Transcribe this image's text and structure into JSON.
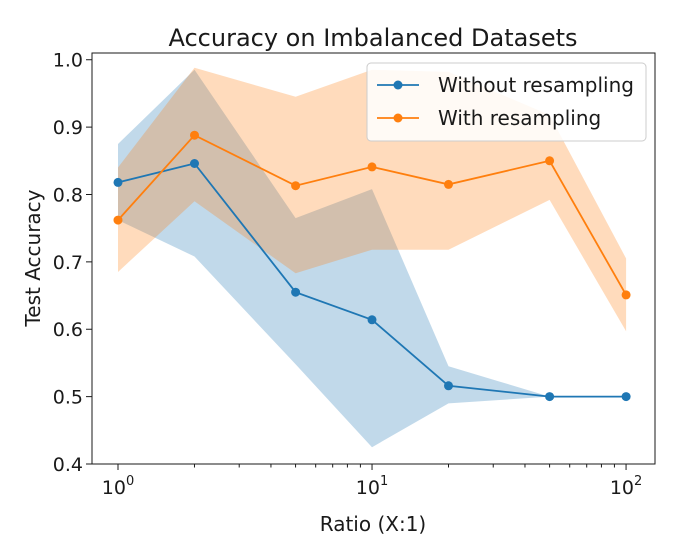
{
  "chart_data": {
    "type": "line",
    "title": "Accuracy on Imbalanced Datasets",
    "xlabel": "Ratio (X:1)",
    "ylabel": "Test Accuracy",
    "xscale": "log",
    "xlim": [
      0.79,
      130
    ],
    "ylim": [
      0.4,
      1.01
    ],
    "x": [
      1,
      2,
      5,
      10,
      20,
      50,
      100
    ],
    "xticks": [
      {
        "value": 1,
        "base": "10",
        "exp": "0"
      },
      {
        "value": 10,
        "base": "10",
        "exp": "1"
      },
      {
        "value": 100,
        "base": "10",
        "exp": "2"
      }
    ],
    "yticks": [
      {
        "value": 0.4,
        "label": "0.4"
      },
      {
        "value": 0.5,
        "label": "0.5"
      },
      {
        "value": 0.6,
        "label": "0.6"
      },
      {
        "value": 0.7,
        "label": "0.7"
      },
      {
        "value": 0.8,
        "label": "0.8"
      },
      {
        "value": 0.9,
        "label": "0.9"
      },
      {
        "value": 1.0,
        "label": "1.0"
      }
    ],
    "legend_position": "top-right",
    "series": [
      {
        "name": "Without resampling",
        "color": "#1f77b4",
        "band_color": "#1f77b4",
        "values": [
          0.818,
          0.846,
          0.655,
          0.614,
          0.516,
          0.5,
          0.5
        ],
        "upper": [
          0.875,
          0.985,
          0.765,
          0.808,
          0.545,
          0.5,
          0.5
        ],
        "lower": [
          0.762,
          0.708,
          0.548,
          0.425,
          0.49,
          0.5,
          0.5
        ]
      },
      {
        "name": "With resampling",
        "color": "#ff7f0e",
        "band_color": "#ff7f0e",
        "values": [
          0.762,
          0.888,
          0.813,
          0.841,
          0.815,
          0.85,
          0.651
        ],
        "upper": [
          0.84,
          0.988,
          0.945,
          0.985,
          0.982,
          0.918,
          0.705
        ],
        "lower": [
          0.685,
          0.79,
          0.683,
          0.718,
          0.718,
          0.792,
          0.597
        ]
      }
    ]
  }
}
